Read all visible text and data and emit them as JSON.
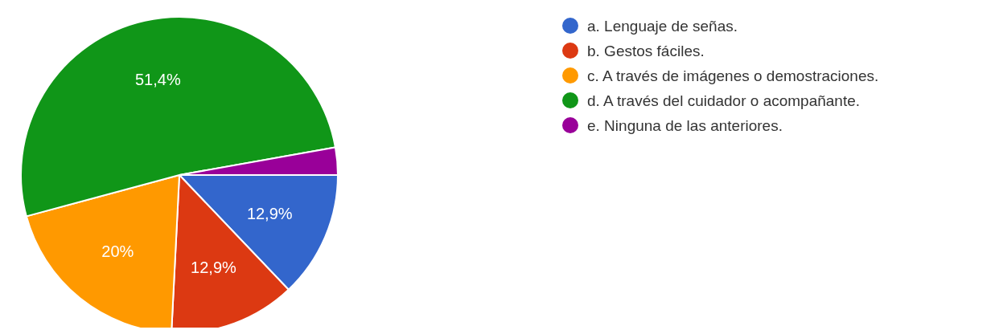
{
  "chart_data": {
    "type": "pie",
    "categories": [
      "a. Lenguaje de señas.",
      "b. Gestos fáciles.",
      "c. A través de imágenes o demostraciones.",
      "d. A través del cuidador o acompañante.",
      "e. Ninguna de las anteriores."
    ],
    "values": [
      12.9,
      12.9,
      20,
      51.4,
      2.8
    ],
    "colors": [
      "#3366cc",
      "#dc3912",
      "#ff9900",
      "#109618",
      "#990099"
    ],
    "value_labels": [
      "12,9%",
      "12,9%",
      "20%",
      "51,4%",
      null
    ],
    "legend": "right"
  }
}
